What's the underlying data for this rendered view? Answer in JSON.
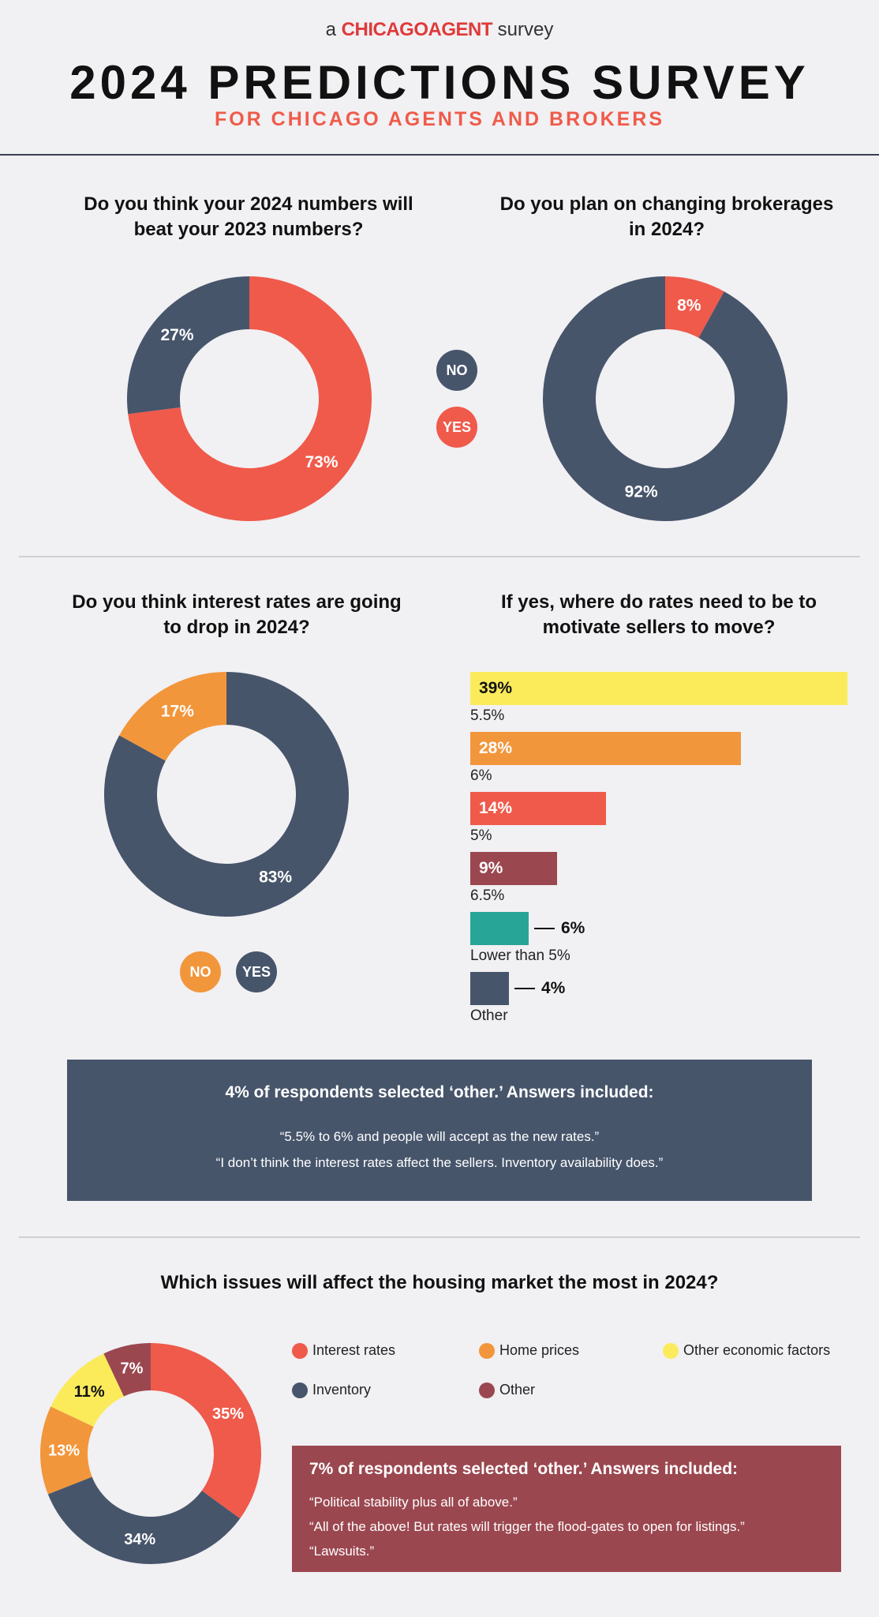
{
  "header": {
    "brand_prefix": "a",
    "brand_logo": "CHICAGOAGENT",
    "brand_suffix": "survey",
    "title": "2024 PREDICTIONS SURVEY",
    "subtitle": "FOR CHICAGO AGENTS AND BROKERS"
  },
  "colors": {
    "red": "#ef5a4b",
    "navy": "#47556b",
    "orange": "#f2963b",
    "yellow": "#fbeb5b",
    "maroon": "#9b4750",
    "teal": "#27a597"
  },
  "legends": {
    "beat_no": "NO",
    "beat_yes": "YES",
    "rates_no": "NO",
    "rates_yes": "YES"
  },
  "chart_data": [
    {
      "type": "pie",
      "title": "Do you think your 2024 numbers will beat your 2023 numbers?",
      "categories": [
        "YES",
        "NO"
      ],
      "values": [
        73,
        27
      ],
      "labels": [
        "73%",
        "27%"
      ],
      "colors": [
        "#ef5a4b",
        "#47556b"
      ]
    },
    {
      "type": "pie",
      "title": "Do you plan on changing brokerages in 2024?",
      "categories": [
        "YES",
        "NO"
      ],
      "values": [
        8,
        92
      ],
      "labels": [
        "8%",
        "92%"
      ],
      "colors": [
        "#ef5a4b",
        "#47556b"
      ]
    },
    {
      "type": "pie",
      "title": "Do you think interest rates are going to drop in 2024?",
      "categories": [
        "YES",
        "NO"
      ],
      "values": [
        83,
        17
      ],
      "labels": [
        "83%",
        "17%"
      ],
      "colors": [
        "#47556b",
        "#f2963b"
      ]
    },
    {
      "type": "bar",
      "title": "If yes, where do rates need to be to motivate sellers to move?",
      "categories": [
        "5.5%",
        "6%",
        "5%",
        "6.5%",
        "Lower than 5%",
        "Other"
      ],
      "values": [
        39,
        28,
        14,
        9,
        6,
        4
      ],
      "labels": [
        "39%",
        "28%",
        "14%",
        "9%",
        "6%",
        "4%"
      ],
      "colors": [
        "#fbeb5b",
        "#f2963b",
        "#ef5a4b",
        "#9b4750",
        "#27a597",
        "#47556b"
      ]
    },
    {
      "type": "pie",
      "title": "Which issues will affect the housing market the most in 2024?",
      "categories": [
        "Interest rates",
        "Inventory",
        "Home prices",
        "Other economic factors",
        "Other"
      ],
      "values": [
        35,
        34,
        13,
        11,
        7
      ],
      "labels": [
        "35%",
        "34%",
        "13%",
        "11%",
        "7%"
      ],
      "colors": [
        "#ef5a4b",
        "#47556b",
        "#f2963b",
        "#fbeb5b",
        "#9b4750"
      ]
    }
  ],
  "note_rates": {
    "title": "4% of respondents selected ‘other.’ Answers included:",
    "quotes": [
      "“5.5% to 6% and people will accept as the new rates.”",
      "“I don’t think the interest rates affect the sellers. Inventory availability does.”"
    ]
  },
  "note_issues": {
    "title": "7% of respondents selected ‘other.’ Answers included:",
    "quotes": [
      "“Political stability plus all of above.”",
      "“All of the above! But rates will trigger the flood-gates to open for listings.”",
      "“Lawsuits.”"
    ]
  }
}
